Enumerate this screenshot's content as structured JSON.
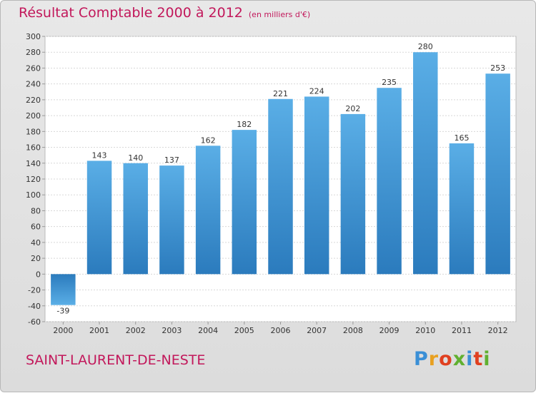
{
  "header": {
    "title": "Résultat Comptable 2000 à 2012",
    "unit": "(en milliers d'€)"
  },
  "footer": {
    "commune": "SAINT-LAURENT-DE-NESTE",
    "brand": [
      "P",
      "r",
      "o",
      "x",
      "i",
      "t",
      "i"
    ]
  },
  "colors": {
    "bar_top": "#5aaee6",
    "bar_bottom": "#2b7bbd",
    "accent": "#c2185b",
    "brand": [
      "#3a8fd6",
      "#e8a020",
      "#e04020",
      "#60b030",
      "#3a8fd6",
      "#e04020",
      "#60b030"
    ]
  },
  "chart_data": {
    "type": "bar",
    "title": "Résultat Comptable 2000 à 2012",
    "ylabel": "(en milliers d'€)",
    "xlabel": "",
    "categories": [
      "2000",
      "2001",
      "2002",
      "2003",
      "2004",
      "2005",
      "2006",
      "2007",
      "2008",
      "2009",
      "2010",
      "2011",
      "2012"
    ],
    "values": [
      -39,
      143,
      140,
      137,
      162,
      182,
      221,
      224,
      202,
      235,
      280,
      165,
      253
    ],
    "ylim": [
      -60,
      300
    ],
    "yticks": [
      -60,
      -40,
      -20,
      0,
      20,
      40,
      60,
      80,
      100,
      120,
      140,
      160,
      180,
      200,
      220,
      240,
      260,
      280,
      300
    ],
    "grid": true
  }
}
